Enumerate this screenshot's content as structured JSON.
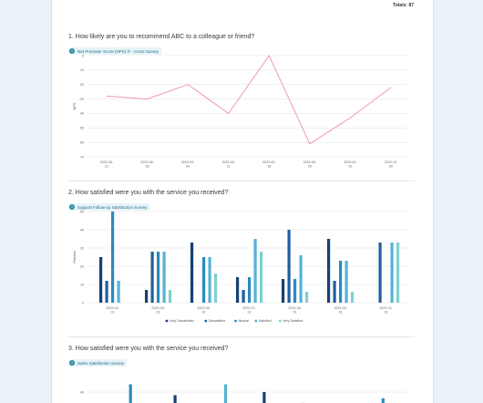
{
  "header": {
    "totals_label": "Totals:",
    "totals_value": "87"
  },
  "colors": {
    "line": "#f19aae",
    "very_dissatisfied": "#173f74",
    "dissatisfied": "#1f5fa0",
    "neutral": "#2b8ac0",
    "satisfied": "#53b3d6",
    "very_satisfied": "#7fd0d0"
  },
  "questions": [
    {
      "title": "1. How likely are you to recommend ABC to a colleague or friend?",
      "survey": "Net Promoter Score (NPS) ® - Cross Survey",
      "survey_icon": "survey-icon"
    },
    {
      "title": "2. How satisfied were you with the service you received?",
      "survey": "Support Follow-up Satisfaction Survey",
      "survey_icon": "survey-icon"
    },
    {
      "title": "3. How satisfied were you with the service you received?",
      "survey": "Sales Satisfaction Survey",
      "survey_icon": "survey-icon"
    }
  ],
  "chart_data": [
    {
      "type": "line",
      "ylabel": "NPS",
      "ylim": [
        -70,
        0
      ],
      "yticks": [
        0,
        -10,
        -20,
        -30,
        -40,
        -50,
        -60,
        -70
      ],
      "categories": [
        [
          "2023-08-",
          "21"
        ],
        [
          "2023-08-",
          "28"
        ],
        [
          "2023-09-",
          "04"
        ],
        [
          "2023-09-",
          "11"
        ],
        [
          "2023-09-",
          "18"
        ],
        [
          "2023-09-",
          "25"
        ],
        [
          "2023-10-",
          "02"
        ],
        [
          "2023-10-",
          "09"
        ]
      ],
      "values": [
        -28,
        -30,
        -20,
        -40,
        0,
        -61,
        -43,
        -22
      ],
      "grid": true
    },
    {
      "type": "bar",
      "ylabel": "Percent",
      "ylim": [
        0,
        50
      ],
      "yticks": [
        0,
        10,
        20,
        30,
        40,
        50
      ],
      "categories": [
        [
          "2023-04-",
          "01"
        ],
        [
          "2023-05-",
          "01"
        ],
        [
          "2023-06-",
          "01"
        ],
        [
          "2023-07-",
          "01"
        ],
        [
          "2023-08-",
          "01"
        ],
        [
          "2023-09-",
          "01"
        ],
        [
          "2023-10-",
          "01"
        ]
      ],
      "series": [
        {
          "name": "Very Dissatisfied",
          "color_key": "very_dissatisfied",
          "values": [
            25,
            7,
            33,
            14,
            13,
            35,
            0
          ]
        },
        {
          "name": "Dissatisfied",
          "color_key": "dissatisfied",
          "values": [
            12,
            28,
            0,
            7,
            40,
            12,
            33
          ]
        },
        {
          "name": "Neutral",
          "color_key": "neutral",
          "values": [
            50,
            28,
            25,
            14,
            13,
            23,
            0
          ]
        },
        {
          "name": "Satisfied",
          "color_key": "satisfied",
          "values": [
            12,
            28,
            25,
            35,
            26,
            23,
            33
          ]
        },
        {
          "name": "Very Satisfied",
          "color_key": "very_satisfied",
          "values": [
            0,
            7,
            16,
            28,
            6,
            6,
            33
          ]
        }
      ],
      "legend": "bottom",
      "grid": true
    },
    {
      "type": "bar",
      "yticks": [
        40
      ],
      "ylim": [
        0,
        50
      ],
      "bars": [
        {
          "x_frac": 0.1,
          "value": 45,
          "color_key": "neutral"
        },
        {
          "x_frac": 0.25,
          "value": 38,
          "color_key": "very_dissatisfied"
        },
        {
          "x_frac": 0.42,
          "value": 45,
          "color_key": "satisfied"
        },
        {
          "x_frac": 0.55,
          "value": 40,
          "color_key": "very_dissatisfied"
        },
        {
          "x_frac": 0.68,
          "value": 33,
          "color_key": "very_dissatisfied"
        },
        {
          "x_frac": 0.95,
          "value": 36,
          "color_key": "neutral"
        }
      ],
      "grid": true
    }
  ]
}
